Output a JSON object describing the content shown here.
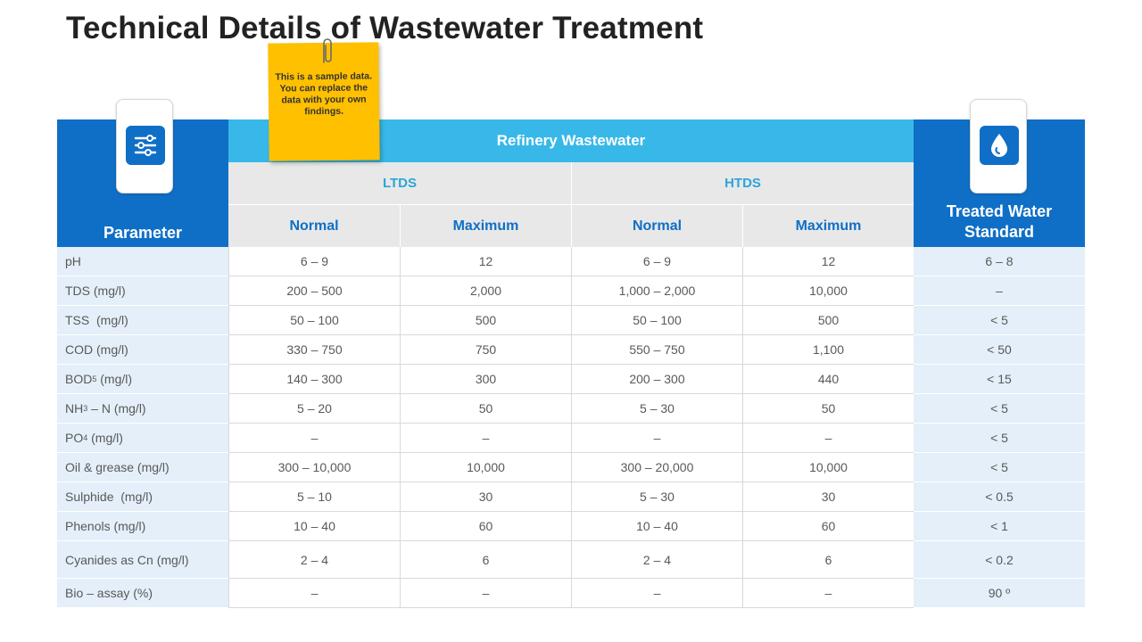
{
  "title": "Technical Details of Wastewater Treatment",
  "note": "This is a sample data. You can replace the data with your own findings.",
  "header": {
    "parameter": "Parameter",
    "treated_water_standard": "Treated Water Standard",
    "refinery_wastewater": "Refinery Wastewater",
    "groups": [
      "LTDS",
      "HTDS"
    ],
    "subcolumns": [
      "Normal",
      "Maximum",
      "Normal",
      "Maximum"
    ]
  },
  "rows": [
    {
      "parameter": "pH",
      "ltds_normal": "6 – 9",
      "ltds_max": "12",
      "htds_normal": "6 – 9",
      "htds_max": "12",
      "standard": "6 – 8"
    },
    {
      "parameter": "TDS (mg/l)",
      "ltds_normal": "200 – 500",
      "ltds_max": "2,000",
      "htds_normal": "1,000 – 2,000",
      "htds_max": "10,000",
      "standard": "–"
    },
    {
      "parameter": "TSS  (mg/l)",
      "ltds_normal": "50 – 100",
      "ltds_max": "500",
      "htds_normal": "50 – 100",
      "htds_max": "500",
      "standard": "< 5"
    },
    {
      "parameter": "COD (mg/l)",
      "ltds_normal": "330 – 750",
      "ltds_max": "750",
      "htds_normal": "550 – 750",
      "htds_max": "1,100",
      "standard": "< 50"
    },
    {
      "parameter": "BOD",
      "parameter_sub": "5",
      "parameter_suffix": " (mg/l)",
      "ltds_normal": "140 – 300",
      "ltds_max": "300",
      "htds_normal": "200 – 300",
      "htds_max": "440",
      "standard": "< 15"
    },
    {
      "parameter": "NH",
      "parameter_sub": "3",
      "parameter_suffix": " – N (mg/l)",
      "ltds_normal": "5 – 20",
      "ltds_max": "50",
      "htds_normal": "5 – 30",
      "htds_max": "50",
      "standard": "< 5"
    },
    {
      "parameter": "PO",
      "parameter_sub": "4",
      "parameter_suffix": " (mg/l)",
      "ltds_normal": "–",
      "ltds_max": "–",
      "htds_normal": "–",
      "htds_max": "–",
      "standard": "< 5"
    },
    {
      "parameter": "Oil & grease (mg/l)",
      "ltds_normal": "300 – 10,000",
      "ltds_max": "10,000",
      "htds_normal": "300 – 20,000",
      "htds_max": "10,000",
      "standard": "< 5"
    },
    {
      "parameter": "Sulphide  (mg/l)",
      "ltds_normal": "5 – 10",
      "ltds_max": "30",
      "htds_normal": "5 – 30",
      "htds_max": "30",
      "standard": "< 0.5"
    },
    {
      "parameter": "Phenols (mg/l)",
      "ltds_normal": "10 – 40",
      "ltds_max": "60",
      "htds_normal": "10 – 40",
      "htds_max": "60",
      "standard": "< 1"
    },
    {
      "parameter": "Cyanides as Cn (mg/l)",
      "ltds_normal": "2 – 4",
      "ltds_max": "6",
      "htds_normal": "2 – 4",
      "htds_max": "6",
      "standard": "< 0.2"
    },
    {
      "parameter": "Bio – assay (%)",
      "ltds_normal": "–",
      "ltds_max": "–",
      "htds_normal": "–",
      "htds_max": "–",
      "standard": "90 º"
    }
  ],
  "icons": {
    "parameter": "sliders-icon",
    "standard": "water-drop-icon",
    "note": "paperclip-icon"
  },
  "colors": {
    "header_dark": "#0F6FC6",
    "header_light": "#38B8E8",
    "note": "#FFC000",
    "param_bg": "#E4EFF9"
  }
}
